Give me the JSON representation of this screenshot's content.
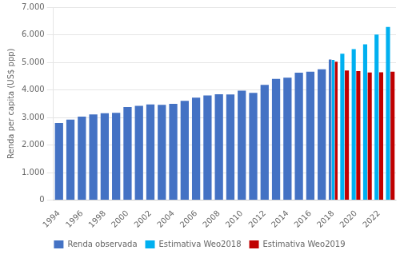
{
  "chart_data": {
    "type": "bar",
    "categories": [
      "1994",
      null,
      "1996",
      null,
      "1998",
      null,
      "2000",
      null,
      "2002",
      null,
      "2004",
      null,
      "2006",
      null,
      "2008",
      null,
      "2010",
      null,
      "2012",
      null,
      "2014",
      null,
      "2016",
      null,
      "2018",
      null,
      "2020",
      null,
      "2022",
      null
    ],
    "series": [
      {
        "name": "Renda observada",
        "color": "#4472C4",
        "values": [
          2800,
          2920,
          3030,
          3110,
          3150,
          3170,
          3380,
          3420,
          3470,
          3460,
          3490,
          3600,
          3720,
          3800,
          3840,
          3830,
          3970,
          3890,
          4180,
          4400,
          4440,
          4620,
          4660,
          4750,
          5100,
          null,
          null,
          null,
          null,
          null
        ]
      },
      {
        "name": "Estimativa Weo2018",
        "color": "#00B0F0",
        "values": [
          null,
          null,
          null,
          null,
          null,
          null,
          null,
          null,
          null,
          null,
          null,
          null,
          null,
          null,
          null,
          null,
          null,
          null,
          null,
          null,
          null,
          null,
          null,
          null,
          5090,
          5310,
          5480,
          5650,
          6010,
          6280
        ]
      },
      {
        "name": "Estimativa Weo2019",
        "color": "#C00000",
        "values": [
          null,
          null,
          null,
          null,
          null,
          null,
          null,
          null,
          null,
          null,
          null,
          null,
          null,
          null,
          null,
          null,
          null,
          null,
          null,
          null,
          null,
          null,
          null,
          null,
          5020,
          4700,
          4680,
          4630,
          4640,
          4660
        ]
      }
    ],
    "ylabel": "Renda per capita (US$ ppp)",
    "ylim": [
      0,
      7000
    ],
    "yticks": [
      0,
      {
        "value": 1000,
        "label": "1.000"
      },
      {
        "value": 2000,
        "label": "2.000"
      },
      {
        "value": 3000,
        "label": "3.000"
      },
      {
        "value": 4000,
        "label": "4.000"
      },
      {
        "value": 5000,
        "label": "5.000"
      },
      {
        "value": 6000,
        "label": "6.000"
      },
      {
        "value": 7000,
        "label": "7.000"
      }
    ],
    "grid": true,
    "legend": "bottom"
  }
}
